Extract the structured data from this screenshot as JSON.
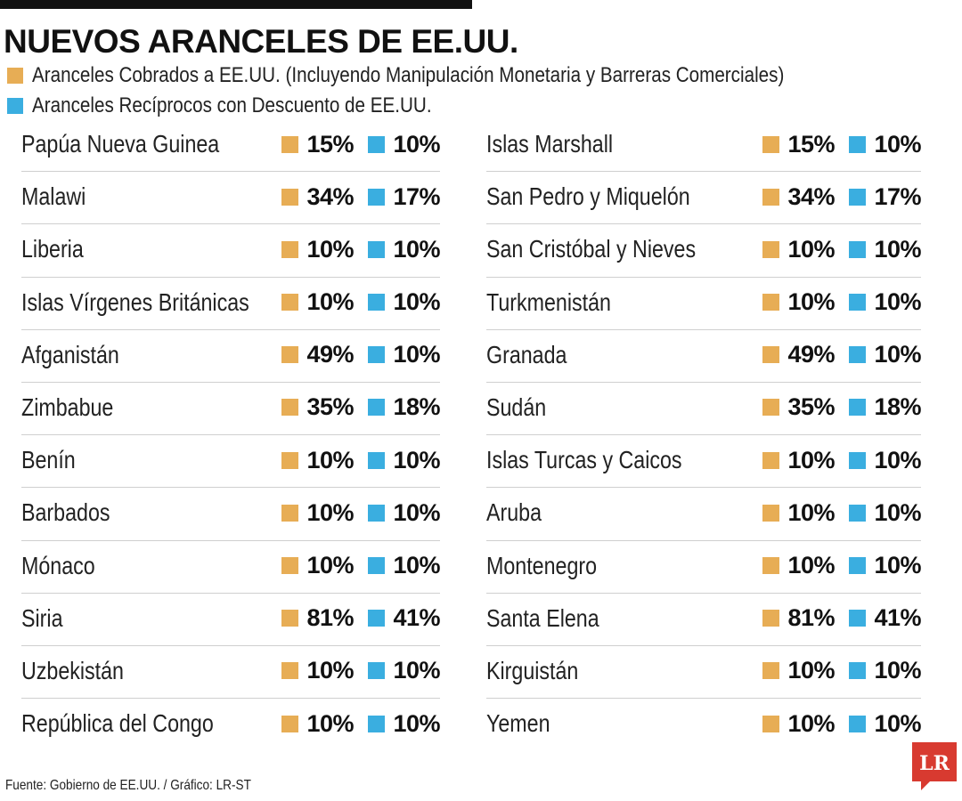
{
  "title": "NUEVOS ARANCELES DE EE.UU.",
  "colors": {
    "orange": "#e7ad55",
    "blue": "#3aaee0",
    "logo_red": "#d83a30"
  },
  "legend": [
    {
      "label": "Aranceles Cobrados a EE.UU. (Incluyendo Manipulación Monetaria y Barreras Comerciales)",
      "color": "orange"
    },
    {
      "label": "Aranceles Recíprocos con Descuento de EE.UU.",
      "color": "blue"
    }
  ],
  "chart_data": {
    "type": "table",
    "title": "NUEVOS ARANCELES DE EE.UU.",
    "series": [
      {
        "name": "Aranceles Cobrados a EE.UU. (Incluyendo Manipulación Monetaria y Barreras Comerciales)",
        "color": "#e7ad55"
      },
      {
        "name": "Aranceles Recíprocos con Descuento de EE.UU.",
        "color": "#3aaee0"
      }
    ],
    "columns": [
      {
        "rows": [
          {
            "country": "Papúa Nueva Guinea",
            "charged": "15%",
            "reciprocal": "10%"
          },
          {
            "country": "Malawi",
            "charged": "34%",
            "reciprocal": "17%"
          },
          {
            "country": "Liberia",
            "charged": "10%",
            "reciprocal": "10%"
          },
          {
            "country": "Islas Vírgenes Británicas",
            "charged": "10%",
            "reciprocal": "10%"
          },
          {
            "country": "Afganistán",
            "charged": "49%",
            "reciprocal": "10%"
          },
          {
            "country": "Zimbabue",
            "charged": "35%",
            "reciprocal": "18%"
          },
          {
            "country": "Benín",
            "charged": "10%",
            "reciprocal": "10%"
          },
          {
            "country": "Barbados",
            "charged": "10%",
            "reciprocal": "10%"
          },
          {
            "country": "Mónaco",
            "charged": "10%",
            "reciprocal": "10%"
          },
          {
            "country": "Siria",
            "charged": "81%",
            "reciprocal": "41%"
          },
          {
            "country": "Uzbekistán",
            "charged": "10%",
            "reciprocal": "10%"
          },
          {
            "country": "República del Congo",
            "charged": "10%",
            "reciprocal": "10%"
          }
        ]
      },
      {
        "rows": [
          {
            "country": "Islas Marshall",
            "charged": "15%",
            "reciprocal": "10%"
          },
          {
            "country": "San Pedro y Miquelón",
            "charged": "34%",
            "reciprocal": "17%"
          },
          {
            "country": "San Cristóbal y Nieves",
            "charged": "10%",
            "reciprocal": "10%"
          },
          {
            "country": "Turkmenistán",
            "charged": "10%",
            "reciprocal": "10%"
          },
          {
            "country": "Granada",
            "charged": "49%",
            "reciprocal": "10%"
          },
          {
            "country": "Sudán",
            "charged": "35%",
            "reciprocal": "18%"
          },
          {
            "country": "Islas Turcas y Caicos",
            "charged": "10%",
            "reciprocal": "10%"
          },
          {
            "country": "Aruba",
            "charged": "10%",
            "reciprocal": "10%"
          },
          {
            "country": "Montenegro",
            "charged": "10%",
            "reciprocal": "10%"
          },
          {
            "country": "Santa Elena",
            "charged": "81%",
            "reciprocal": "41%"
          },
          {
            "country": "Kirguistán",
            "charged": "10%",
            "reciprocal": "10%"
          },
          {
            "country": "Yemen",
            "charged": "10%",
            "reciprocal": "10%"
          }
        ]
      }
    ]
  },
  "source": "Fuente: Gobierno de EE.UU. / Gráfico: LR-ST",
  "logo_text": "LR"
}
